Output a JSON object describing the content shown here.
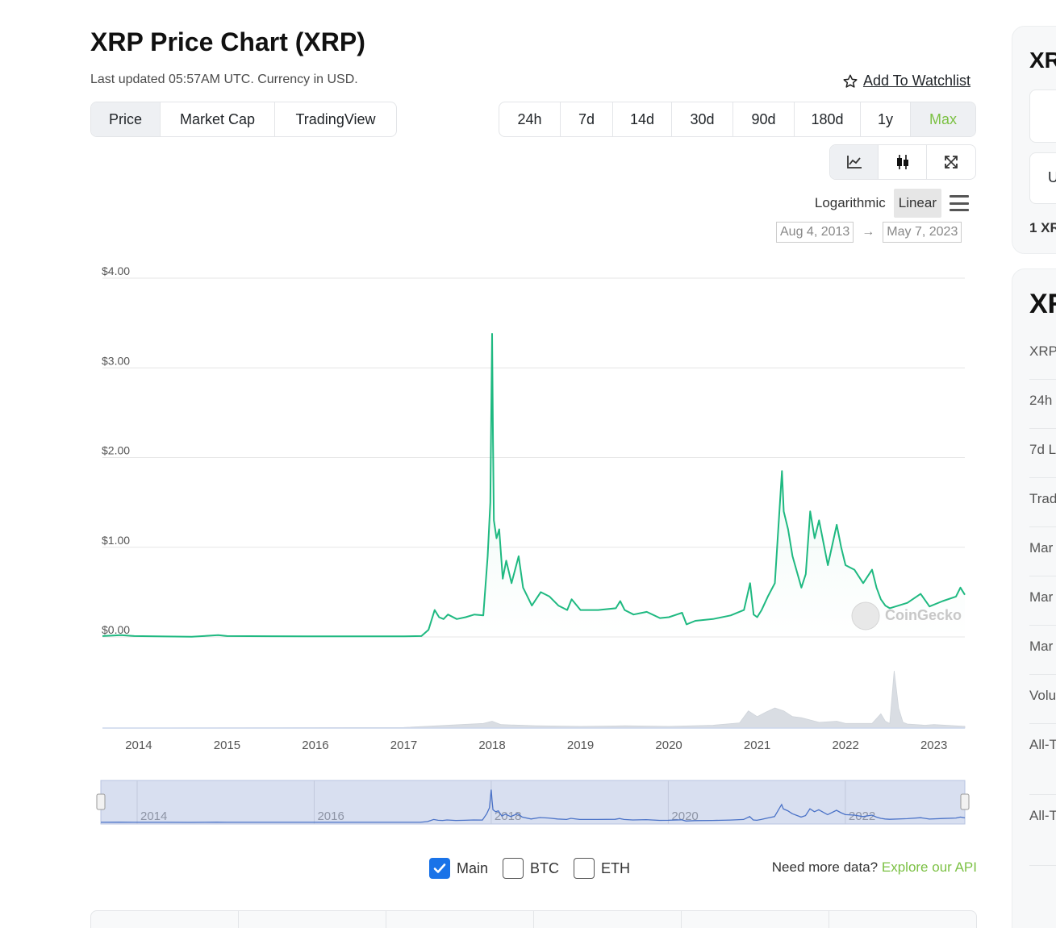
{
  "header": {
    "title": "XRP Price Chart (XRP)",
    "subtitle": "Last updated 05:57AM UTC. Currency in USD.",
    "watchlist_label": "Add To Watchlist"
  },
  "tabs": [
    "Price",
    "Market Cap",
    "TradingView"
  ],
  "ranges": [
    "24h",
    "7d",
    "14d",
    "30d",
    "90d",
    "180d",
    "1y",
    "Max"
  ],
  "tool_icons": [
    "line-chart-icon",
    "candlestick-icon",
    "expand-icon"
  ],
  "scale": {
    "log_label": "Logarithmic",
    "linear_label": "Linear",
    "active": "Linear"
  },
  "date_range": {
    "from": "Aug 4, 2013",
    "arrow": "→",
    "to": "May 7, 2023"
  },
  "watermark": "CoinGecko",
  "options": {
    "main": "Main",
    "btc": "BTC",
    "eth": "ETH",
    "main_checked": true
  },
  "api": {
    "prompt": "Need more data?",
    "link": "Explore our API"
  },
  "colors": {
    "line": "#1fb981",
    "accent": "#7cc144",
    "navigator": "#4a72c7",
    "checkbox": "#1a73e8"
  },
  "sidebar": {
    "card1_title": "XR",
    "card1_field1": "",
    "card1_field2": "U",
    "card1_footer": "1 XR",
    "card2_title": "XR",
    "card2_rows": [
      "XRP",
      "24h",
      "7d L",
      "Trad",
      "Mar",
      "Mar",
      "Mar",
      "Volu",
      "All-T",
      "All-T"
    ]
  },
  "chart_data": {
    "type": "line",
    "title": "",
    "xlabel": "",
    "ylabel": "",
    "y_tick_labels": [
      "$0.00",
      "$1.00",
      "$2.00",
      "$3.00",
      "$4.00"
    ],
    "y_ticks": [
      0,
      1,
      2,
      3,
      4
    ],
    "ylim": [
      0,
      4
    ],
    "x_tick_labels": [
      "2014",
      "2015",
      "2016",
      "2017",
      "2018",
      "2019",
      "2020",
      "2021",
      "2022",
      "2023"
    ],
    "x_ticks": [
      2014,
      2015,
      2016,
      2017,
      2018,
      2019,
      2020,
      2021,
      2022,
      2023
    ],
    "xlim": [
      2013.59,
      2023.35
    ],
    "navigator_tick_labels": [
      "2014",
      "2016",
      "2018",
      "2020",
      "2022"
    ],
    "navigator_ticks": [
      2014,
      2016,
      2018,
      2020,
      2022
    ],
    "grid": true,
    "legend": "none",
    "series": [
      {
        "values_x": [
          2013.59,
          2013.8,
          2013.95,
          2014.3,
          2014.6,
          2014.9,
          2015.0,
          2015.5,
          2016.0,
          2016.5,
          2017.0,
          2017.2,
          2017.28,
          2017.35,
          2017.4,
          2017.45,
          2017.5,
          2017.6,
          2017.7,
          2017.8,
          2017.9,
          2017.95,
          2017.98,
          2018.0,
          2018.01,
          2018.02,
          2018.05,
          2018.08,
          2018.12,
          2018.16,
          2018.22,
          2018.3,
          2018.35,
          2018.45,
          2018.55,
          2018.65,
          2018.75,
          2018.85,
          2018.9,
          2019.0,
          2019.2,
          2019.4,
          2019.45,
          2019.5,
          2019.6,
          2019.75,
          2019.9,
          2020.0,
          2020.15,
          2020.2,
          2020.3,
          2020.5,
          2020.7,
          2020.85,
          2020.92,
          2020.96,
          2021.0,
          2021.05,
          2021.12,
          2021.2,
          2021.28,
          2021.3,
          2021.35,
          2021.4,
          2021.5,
          2021.55,
          2021.6,
          2021.65,
          2021.7,
          2021.8,
          2021.9,
          2021.95,
          2022.0,
          2022.1,
          2022.2,
          2022.3,
          2022.35,
          2022.4,
          2022.45,
          2022.5,
          2022.7,
          2022.85,
          2022.95,
          2023.1,
          2023.25,
          2023.3,
          2023.35
        ],
        "values_y": [
          0.01,
          0.02,
          0.01,
          0.005,
          0.003,
          0.02,
          0.01,
          0.008,
          0.006,
          0.007,
          0.007,
          0.01,
          0.08,
          0.3,
          0.22,
          0.2,
          0.25,
          0.2,
          0.22,
          0.25,
          0.24,
          0.9,
          1.5,
          3.38,
          2.2,
          1.3,
          1.1,
          1.2,
          0.65,
          0.85,
          0.6,
          0.9,
          0.55,
          0.35,
          0.5,
          0.45,
          0.35,
          0.3,
          0.42,
          0.3,
          0.3,
          0.32,
          0.4,
          0.3,
          0.25,
          0.28,
          0.21,
          0.22,
          0.27,
          0.14,
          0.18,
          0.2,
          0.24,
          0.3,
          0.6,
          0.25,
          0.22,
          0.3,
          0.45,
          0.6,
          1.85,
          1.4,
          1.2,
          0.9,
          0.55,
          0.7,
          1.4,
          1.1,
          1.3,
          0.8,
          1.25,
          1.0,
          0.8,
          0.75,
          0.6,
          0.75,
          0.55,
          0.42,
          0.35,
          0.32,
          0.38,
          0.48,
          0.34,
          0.4,
          0.45,
          0.55,
          0.47
        ]
      }
    ],
    "volume_series": {
      "values_x": [
        2013.6,
        2017.0,
        2017.9,
        2018.0,
        2018.1,
        2018.5,
        2019.0,
        2019.5,
        2020.0,
        2020.5,
        2020.8,
        2020.9,
        2021.0,
        2021.1,
        2021.2,
        2021.3,
        2021.4,
        2021.5,
        2021.7,
        2021.9,
        2022.0,
        2022.3,
        2022.4,
        2022.45,
        2022.5,
        2022.55,
        2022.6,
        2022.65,
        2022.7,
        2022.9,
        2023.0,
        2023.35
      ],
      "values_y": [
        0.0,
        0.01,
        0.08,
        0.12,
        0.06,
        0.04,
        0.03,
        0.04,
        0.03,
        0.05,
        0.09,
        0.3,
        0.2,
        0.28,
        0.35,
        0.3,
        0.2,
        0.18,
        0.1,
        0.12,
        0.08,
        0.08,
        0.25,
        0.12,
        0.08,
        1.0,
        0.35,
        0.1,
        0.07,
        0.05,
        0.06,
        0.03
      ]
    }
  }
}
